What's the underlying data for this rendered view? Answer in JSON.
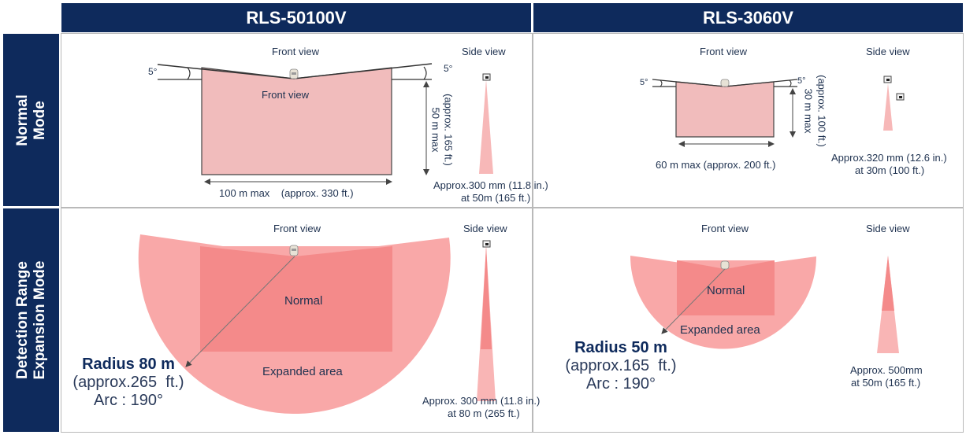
{
  "columns": [
    {
      "title": "RLS-50100V"
    },
    {
      "title": "RLS-3060V"
    }
  ],
  "rows": [
    {
      "title_lines": [
        "Normal",
        "Mode"
      ]
    },
    {
      "title_lines": [
        "Detection Range",
        "Expansion Mode"
      ]
    }
  ],
  "normal_50100": {
    "front_view": "Front view",
    "side_view": "Side view",
    "inner_label": "Front view",
    "angle_left": "5°",
    "angle_right": "5°",
    "width_label": "100 m max    (approx. 330 ft.)",
    "depth_label_1": "50 m max",
    "depth_label_2": "(approx. 165 ft.)",
    "side_caption_1": "Approx.300 mm (11.8 in.)",
    "side_caption_2": "at 50m (165 ft.)"
  },
  "normal_3060": {
    "front_view": "Front view",
    "side_view": "Side view",
    "angle_left": "5°",
    "angle_right": "5°",
    "width_label": "60 m max (approx. 200 ft.)",
    "depth_label_1": "30 m max",
    "depth_label_2": "(approx. 100 ft.)",
    "side_caption_1": "Approx.320 mm (12.6 in.)",
    "side_caption_2": "at 30m (100 ft.)"
  },
  "expansion_50100": {
    "front_view": "Front view",
    "side_view": "Side view",
    "normal_label": "Normal",
    "expanded_label": "Expanded area",
    "radius_label": "Radius 80 m",
    "approx_label": "(approx.265  ft.)",
    "arc_label": "Arc : 190°",
    "side_caption_1": "Approx. 300 mm (11.8 in.)",
    "side_caption_2": "at 80 m (265 ft.)"
  },
  "expansion_3060": {
    "front_view": "Front view",
    "side_view": "Side view",
    "normal_label": "Normal",
    "expanded_label": "Expanded area",
    "radius_label": "Radius 50 m",
    "approx_label": "(approx.165  ft.)",
    "arc_label": "Arc : 190°",
    "side_caption_1": "Approx. 500mm",
    "side_caption_2": "at 50m (165 ft.)"
  },
  "colors": {
    "header": "#0e2a5c",
    "zone_normal": "#f1bcbc",
    "zone_expanded": "#f9a8a8",
    "zone_normal_in_expansion": "#f48a8a",
    "beam": "#f4a3a3"
  }
}
